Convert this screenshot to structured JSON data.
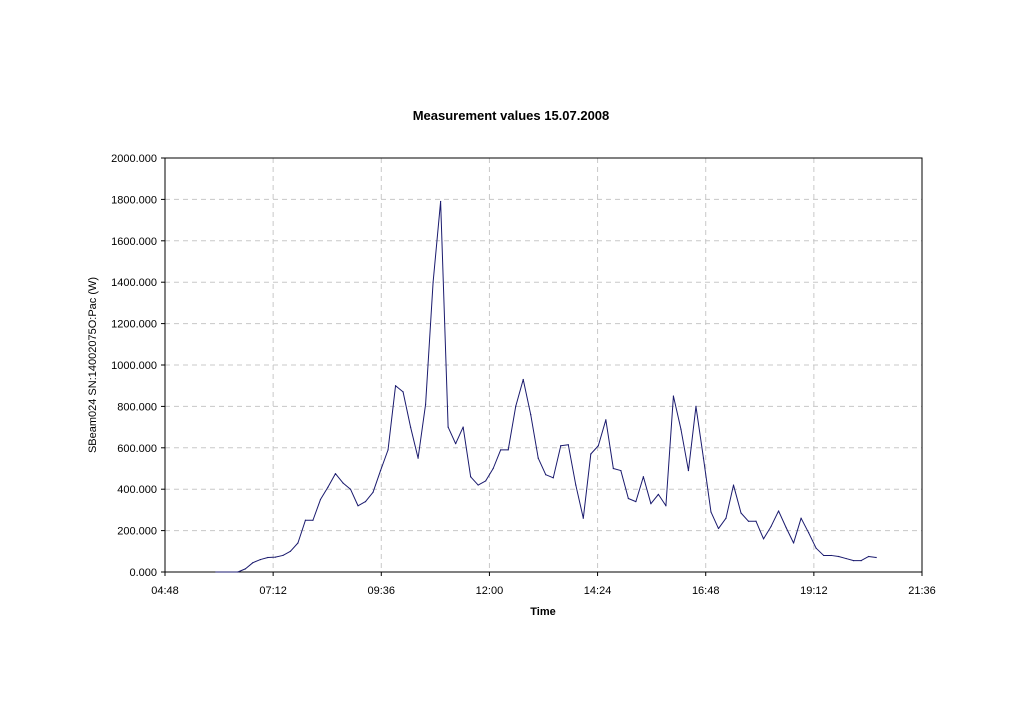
{
  "chart_data": {
    "type": "line",
    "title": "Measurement values 15.07.2008",
    "xlabel": "Time",
    "ylabel": "SBeam024 SN:14002075O:Pac (W)",
    "xlim": [
      "04:48",
      "21:36"
    ],
    "ylim": [
      0,
      2000
    ],
    "grid": true,
    "x_ticks": [
      "04:48",
      "07:12",
      "09:36",
      "12:00",
      "14:24",
      "16:48",
      "19:12",
      "21:36"
    ],
    "y_ticks": [
      "0.000",
      "200.000",
      "400.000",
      "600.000",
      "800.000",
      "1000.000",
      "1200.000",
      "1400.000",
      "1600.000",
      "1800.000",
      "2000.000"
    ],
    "colors": {
      "series": "#1a1a6e",
      "grid": "#c8c8c8",
      "frame": "#000000"
    },
    "series": [
      {
        "x": [
          "06:25",
          "06:35",
          "06:45",
          "06:55",
          "07:05",
          "07:15",
          "07:25",
          "07:35",
          "07:45",
          "07:55",
          "08:05",
          "08:15",
          "08:25",
          "08:35",
          "08:45",
          "08:55",
          "09:05",
          "09:15",
          "09:25",
          "09:35",
          "09:45",
          "09:55",
          "10:05",
          "10:15",
          "10:25",
          "10:35",
          "10:45",
          "10:55",
          "11:05",
          "11:15",
          "11:25",
          "11:35",
          "11:45",
          "11:55",
          "12:05",
          "12:15",
          "12:25",
          "12:35",
          "12:45",
          "12:55",
          "13:05",
          "13:15",
          "13:25",
          "13:35",
          "13:45",
          "13:55",
          "14:05",
          "14:15",
          "14:25",
          "14:35",
          "14:45",
          "14:55",
          "15:05",
          "15:15",
          "15:25",
          "15:35",
          "15:45",
          "15:55",
          "16:05",
          "16:15",
          "16:25",
          "16:35",
          "16:45",
          "16:55",
          "17:05",
          "17:15",
          "17:25",
          "17:35",
          "17:45",
          "17:55",
          "18:05",
          "18:15",
          "18:25",
          "18:35",
          "18:45",
          "18:55",
          "19:05",
          "19:15",
          "19:25",
          "19:35",
          "19:45",
          "19:55",
          "20:05",
          "20:15",
          "20:25",
          "20:35"
        ],
        "values": [
          0,
          15,
          45,
          60,
          70,
          72,
          80,
          100,
          140,
          250,
          250,
          350,
          410,
          475,
          430,
          400,
          320,
          340,
          385,
          490,
          590,
          900,
          870,
          700,
          550,
          810,
          1400,
          1790,
          700,
          620,
          700,
          460,
          420,
          440,
          500,
          590,
          590,
          800,
          930,
          760,
          550,
          470,
          455,
          610,
          615,
          420,
          260,
          570,
          610,
          735,
          500,
          490,
          355,
          340,
          460,
          330,
          375,
          320,
          850,
          690,
          490,
          800,
          550,
          290,
          210,
          260,
          420,
          285,
          245,
          245,
          160,
          220,
          295,
          215,
          140,
          260,
          190,
          115,
          80,
          80,
          75,
          65,
          55,
          55,
          75,
          70
        ]
      }
    ]
  }
}
